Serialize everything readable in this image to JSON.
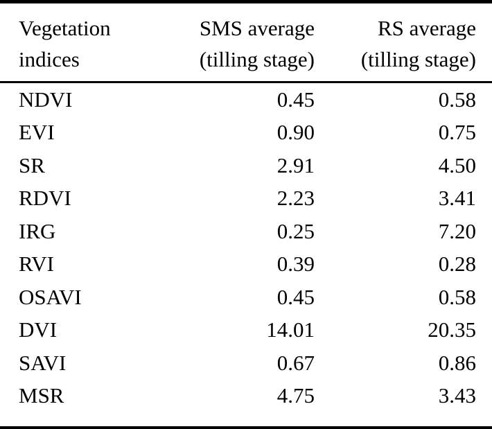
{
  "table": {
    "name": "vegetation-indices-averages",
    "colors": {
      "text": "#000000",
      "background": "#ffffff",
      "rule": "#000000"
    },
    "columns": [
      {
        "id": "index",
        "line1": "Vegetation",
        "line2": "indices"
      },
      {
        "id": "sms",
        "line1": "SMS average",
        "line2": "(tilling stage)"
      },
      {
        "id": "rs",
        "line1": "RS average",
        "line2": "(tilling stage)"
      }
    ],
    "rows": [
      {
        "index": "NDVI",
        "sms": "0.45",
        "rs": "0.58"
      },
      {
        "index": "EVI",
        "sms": "0.90",
        "rs": "0.75"
      },
      {
        "index": "SR",
        "sms": "2.91",
        "rs": "4.50"
      },
      {
        "index": "RDVI",
        "sms": "2.23",
        "rs": "3.41"
      },
      {
        "index": "IRG",
        "sms": "0.25",
        "rs": "7.20"
      },
      {
        "index": "RVI",
        "sms": "0.39",
        "rs": "0.28"
      },
      {
        "index": "OSAVI",
        "sms": "0.45",
        "rs": "0.58"
      },
      {
        "index": "DVI",
        "sms": "14.01",
        "rs": "20.35"
      },
      {
        "index": "SAVI",
        "sms": "0.67",
        "rs": "0.86"
      },
      {
        "index": "MSR",
        "sms": "4.75",
        "rs": "3.43"
      }
    ]
  }
}
